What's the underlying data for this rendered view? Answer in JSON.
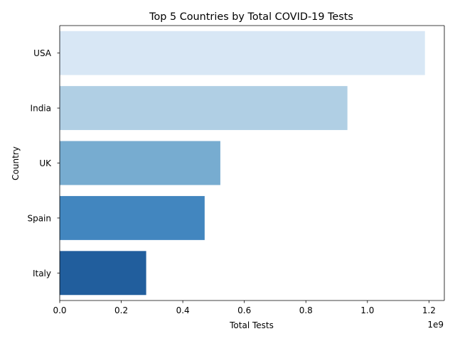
{
  "chart_data": {
    "type": "bar",
    "orientation": "horizontal",
    "title": "Top 5 Countries by Total COVID-19 Tests",
    "xlabel": "Total Tests",
    "ylabel": "Country",
    "x_offset_text": "1e9",
    "xlim": [
      0,
      1.25
    ],
    "x_ticks": [
      0.0,
      0.2,
      0.4,
      0.6,
      0.8,
      1.0,
      1.2
    ],
    "x_tick_labels": [
      "0.0",
      "0.2",
      "0.4",
      "0.6",
      "0.8",
      "1.0",
      "1.2"
    ],
    "categories": [
      "USA",
      "India",
      "UK",
      "Spain",
      "Italy"
    ],
    "values": [
      1.187,
      0.935,
      0.522,
      0.471,
      0.281
    ],
    "value_scale": 1000000000,
    "colors": [
      "#d8e7f5",
      "#b0cfe4",
      "#77acd0",
      "#4286bf",
      "#215e9d"
    ],
    "grid": false,
    "legend": "none"
  }
}
